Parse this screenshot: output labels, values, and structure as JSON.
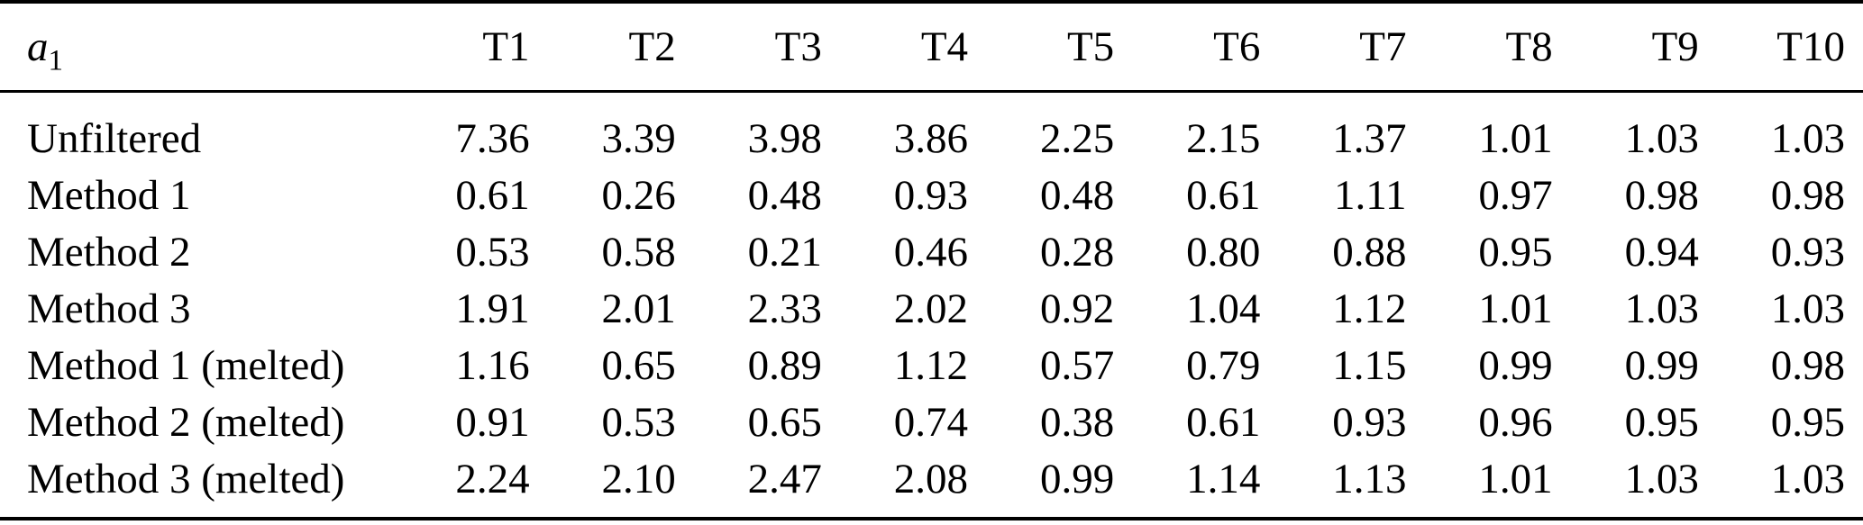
{
  "table": {
    "corner_var": "a",
    "corner_sub": "1",
    "columns": [
      "T1",
      "T2",
      "T3",
      "T4",
      "T5",
      "T6",
      "T7",
      "T8",
      "T9",
      "T10"
    ],
    "rows": [
      {
        "label": "Unfiltered",
        "values": [
          "7.36",
          "3.39",
          "3.98",
          "3.86",
          "2.25",
          "2.15",
          "1.37",
          "1.01",
          "1.03",
          "1.03"
        ]
      },
      {
        "label": "Method 1",
        "values": [
          "0.61",
          "0.26",
          "0.48",
          "0.93",
          "0.48",
          "0.61",
          "1.11",
          "0.97",
          "0.98",
          "0.98"
        ]
      },
      {
        "label": "Method 2",
        "values": [
          "0.53",
          "0.58",
          "0.21",
          "0.46",
          "0.28",
          "0.80",
          "0.88",
          "0.95",
          "0.94",
          "0.93"
        ]
      },
      {
        "label": "Method 3",
        "values": [
          "1.91",
          "2.01",
          "2.33",
          "2.02",
          "0.92",
          "1.04",
          "1.12",
          "1.01",
          "1.03",
          "1.03"
        ]
      },
      {
        "label": "Method 1 (melted)",
        "values": [
          "1.16",
          "0.65",
          "0.89",
          "1.12",
          "0.57",
          "0.79",
          "1.15",
          "0.99",
          "0.99",
          "0.98"
        ]
      },
      {
        "label": "Method 2 (melted)",
        "values": [
          "0.91",
          "0.53",
          "0.65",
          "0.74",
          "0.38",
          "0.61",
          "0.93",
          "0.96",
          "0.95",
          "0.95"
        ]
      },
      {
        "label": "Method 3 (melted)",
        "values": [
          "2.24",
          "2.10",
          "2.47",
          "2.08",
          "0.99",
          "1.14",
          "1.13",
          "1.01",
          "1.03",
          "1.03"
        ]
      }
    ],
    "colors": {
      "text": "#000000",
      "background": "#ffffff",
      "rule": "#000000"
    }
  },
  "chart_data": {
    "type": "table",
    "title": "",
    "columns": [
      "a1",
      "T1",
      "T2",
      "T3",
      "T4",
      "T5",
      "T6",
      "T7",
      "T8",
      "T9",
      "T10"
    ],
    "series": [
      {
        "name": "Unfiltered",
        "values": [
          7.36,
          3.39,
          3.98,
          3.86,
          2.25,
          2.15,
          1.37,
          1.01,
          1.03,
          1.03
        ]
      },
      {
        "name": "Method 1",
        "values": [
          0.61,
          0.26,
          0.48,
          0.93,
          0.48,
          0.61,
          1.11,
          0.97,
          0.98,
          0.98
        ]
      },
      {
        "name": "Method 2",
        "values": [
          0.53,
          0.58,
          0.21,
          0.46,
          0.28,
          0.8,
          0.88,
          0.95,
          0.94,
          0.93
        ]
      },
      {
        "name": "Method 3",
        "values": [
          1.91,
          2.01,
          2.33,
          2.02,
          0.92,
          1.04,
          1.12,
          1.01,
          1.03,
          1.03
        ]
      },
      {
        "name": "Method 1 (melted)",
        "values": [
          1.16,
          0.65,
          0.89,
          1.12,
          0.57,
          0.79,
          1.15,
          0.99,
          0.99,
          0.98
        ]
      },
      {
        "name": "Method 2 (melted)",
        "values": [
          0.91,
          0.53,
          0.65,
          0.74,
          0.38,
          0.61,
          0.93,
          0.96,
          0.95,
          0.95
        ]
      },
      {
        "name": "Method 3 (melted)",
        "values": [
          2.24,
          2.1,
          2.47,
          2.08,
          0.99,
          1.14,
          1.13,
          1.01,
          1.03,
          1.03
        ]
      }
    ]
  }
}
